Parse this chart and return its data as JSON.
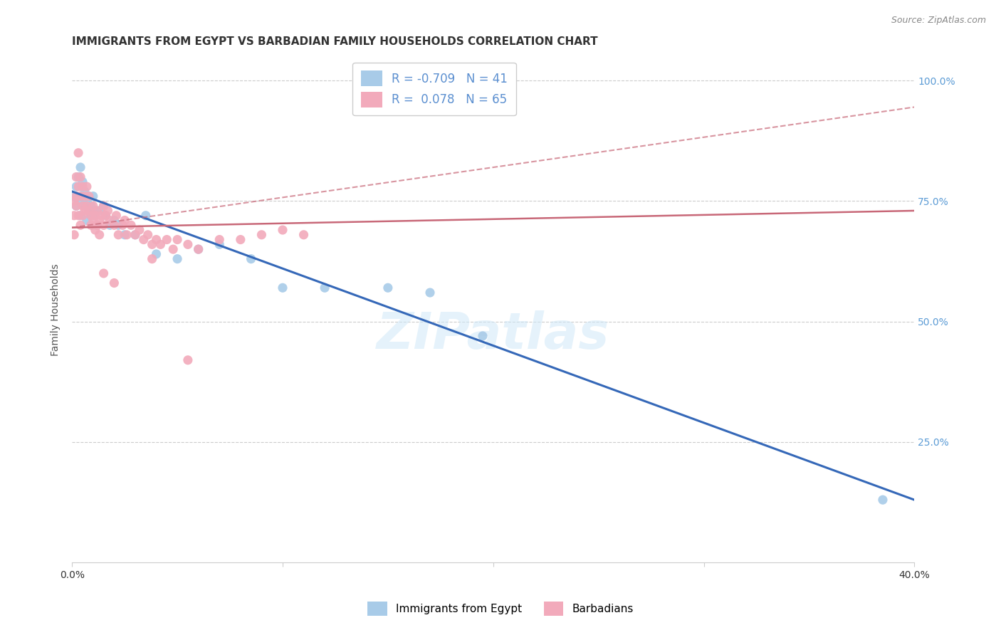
{
  "title": "IMMIGRANTS FROM EGYPT VS BARBADIAN FAMILY HOUSEHOLDS CORRELATION CHART",
  "source": "Source: ZipAtlas.com",
  "ylabel": "Family Households",
  "xlim": [
    0.0,
    0.4
  ],
  "ylim": [
    0.0,
    1.05
  ],
  "ytick_positions": [
    0.25,
    0.5,
    0.75,
    1.0
  ],
  "ytick_labels": [
    "25.0%",
    "50.0%",
    "75.0%",
    "100.0%"
  ],
  "watermark": "ZIPatlas",
  "blue_R": -0.709,
  "blue_N": 41,
  "pink_R": 0.078,
  "pink_N": 65,
  "blue_color": "#A8CBE8",
  "pink_color": "#F2AABB",
  "blue_line_color": "#3568B8",
  "pink_line_color": "#C86878",
  "legend_label_blue": "Immigrants from Egypt",
  "legend_label_pink": "Barbadians",
  "legend_text_color": "#5B8FD0",
  "blue_scatter_x": [
    0.001,
    0.002,
    0.002,
    0.003,
    0.003,
    0.004,
    0.004,
    0.005,
    0.005,
    0.006,
    0.006,
    0.007,
    0.007,
    0.008,
    0.008,
    0.009,
    0.009,
    0.01,
    0.01,
    0.011,
    0.012,
    0.013,
    0.015,
    0.016,
    0.018,
    0.02,
    0.022,
    0.025,
    0.03,
    0.035,
    0.04,
    0.05,
    0.06,
    0.07,
    0.085,
    0.1,
    0.12,
    0.15,
    0.17,
    0.195,
    0.385
  ],
  "blue_scatter_y": [
    0.76,
    0.78,
    0.74,
    0.8,
    0.75,
    0.82,
    0.72,
    0.76,
    0.79,
    0.74,
    0.77,
    0.75,
    0.71,
    0.73,
    0.76,
    0.72,
    0.74,
    0.72,
    0.76,
    0.73,
    0.7,
    0.73,
    0.74,
    0.72,
    0.7,
    0.71,
    0.7,
    0.68,
    0.68,
    0.72,
    0.64,
    0.63,
    0.65,
    0.66,
    0.63,
    0.57,
    0.57,
    0.57,
    0.56,
    0.47,
    0.13
  ],
  "pink_scatter_x": [
    0.001,
    0.001,
    0.001,
    0.002,
    0.002,
    0.002,
    0.003,
    0.003,
    0.003,
    0.004,
    0.004,
    0.004,
    0.005,
    0.005,
    0.005,
    0.006,
    0.006,
    0.007,
    0.007,
    0.008,
    0.008,
    0.009,
    0.009,
    0.01,
    0.01,
    0.011,
    0.011,
    0.012,
    0.012,
    0.013,
    0.013,
    0.014,
    0.015,
    0.015,
    0.016,
    0.017,
    0.018,
    0.02,
    0.021,
    0.022,
    0.024,
    0.025,
    0.026,
    0.028,
    0.03,
    0.032,
    0.034,
    0.036,
    0.038,
    0.04,
    0.042,
    0.045,
    0.048,
    0.05,
    0.055,
    0.06,
    0.07,
    0.08,
    0.09,
    0.1,
    0.11,
    0.015,
    0.02,
    0.038,
    0.055
  ],
  "pink_scatter_y": [
    0.72,
    0.68,
    0.75,
    0.8,
    0.76,
    0.74,
    0.85,
    0.78,
    0.72,
    0.8,
    0.76,
    0.7,
    0.78,
    0.74,
    0.72,
    0.76,
    0.73,
    0.78,
    0.74,
    0.73,
    0.76,
    0.72,
    0.7,
    0.74,
    0.71,
    0.72,
    0.69,
    0.73,
    0.7,
    0.71,
    0.68,
    0.72,
    0.74,
    0.7,
    0.72,
    0.73,
    0.71,
    0.7,
    0.72,
    0.68,
    0.7,
    0.71,
    0.68,
    0.7,
    0.68,
    0.69,
    0.67,
    0.68,
    0.66,
    0.67,
    0.66,
    0.67,
    0.65,
    0.67,
    0.66,
    0.65,
    0.67,
    0.67,
    0.68,
    0.69,
    0.68,
    0.6,
    0.58,
    0.63,
    0.42
  ],
  "blue_line_x": [
    0.0,
    0.4
  ],
  "blue_line_y": [
    0.77,
    0.13
  ],
  "pink_line_x": [
    0.0,
    0.4
  ],
  "pink_line_y": [
    0.695,
    0.73
  ],
  "pink_dash_line_x": [
    0.0,
    0.4
  ],
  "pink_dash_line_y": [
    0.695,
    0.945
  ],
  "grid_color": "#CCCCCC",
  "background_color": "#FFFFFF",
  "title_color": "#333333",
  "right_axis_color": "#5B9BD5",
  "title_fontsize": 11,
  "source_fontsize": 9
}
